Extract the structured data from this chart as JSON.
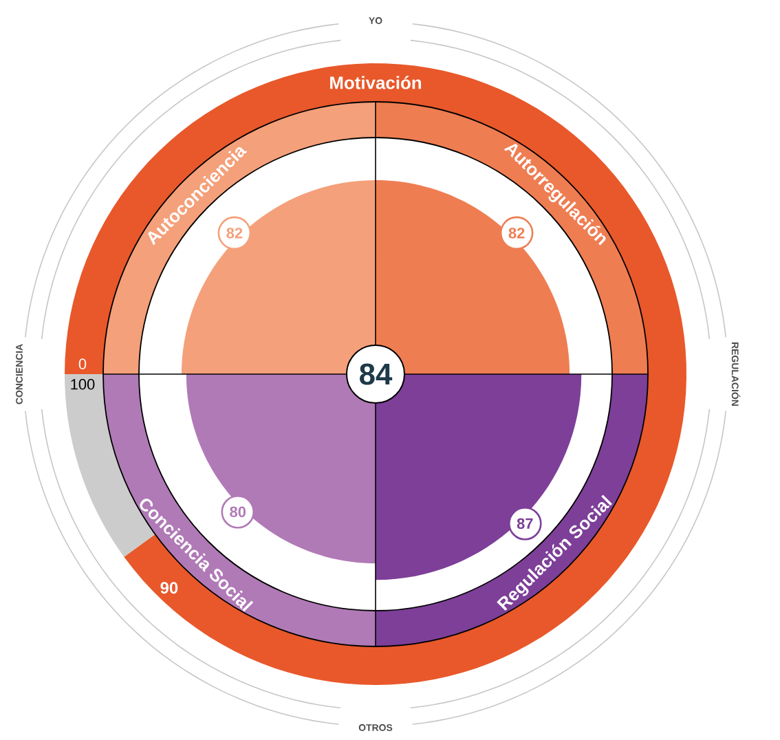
{
  "chart_data": [
    {
      "type": "donut",
      "title": "Motivación",
      "categories": [
        null,
        null
      ],
      "values": [
        90,
        10
      ],
      "colors": [
        "#e8582a",
        "#cccccc"
      ],
      "value_labels": [
        "90",
        null
      ],
      "annotations": [
        "0",
        "100"
      ]
    },
    {
      "type": "other",
      "categories": [
        "Autoconciencia",
        "Autorregulación",
        "Conciencia Social",
        "Regulación Social"
      ],
      "values": [
        82,
        82,
        80,
        87
      ],
      "colors": [
        "#f4a07a",
        "#ef7d52",
        "#b07ab6",
        "#7d3f98"
      ],
      "data_labels": true,
      "annotations": [
        "84",
        "YO",
        "OTROS",
        "CONCIENCIA",
        "REGULACIÓN"
      ]
    }
  ]
}
